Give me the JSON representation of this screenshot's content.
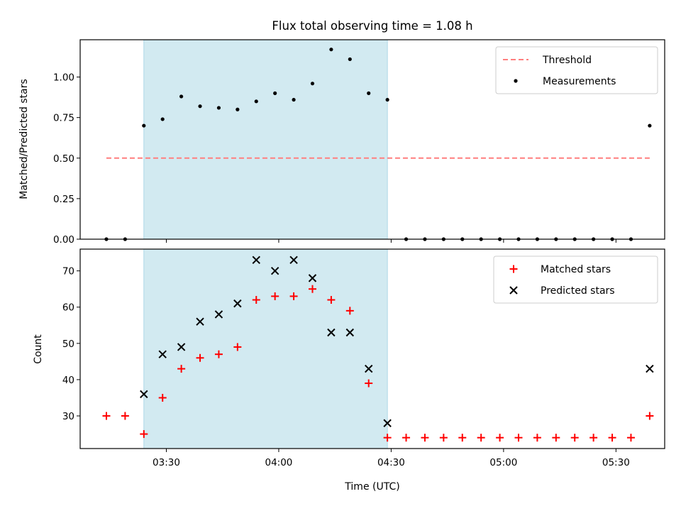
{
  "chart_data": [
    {
      "type": "scatter",
      "title": "Flux total observing time = 1.08 h",
      "ylabel": "Matched/Predicted stars",
      "xlabel": "",
      "ylim": [
        0,
        1.23
      ],
      "yticks": [
        "0.00",
        "0.25",
        "0.50",
        "0.75",
        "1.00"
      ],
      "ytick_values": [
        0,
        0.25,
        0.5,
        0.75,
        1.0
      ],
      "legend": {
        "placement": "top-right",
        "entries": [
          "Threshold",
          "Measurements"
        ]
      },
      "threshold": {
        "name": "Threshold",
        "value": 0.5,
        "x_start": "03:14",
        "x_end": "05:39",
        "color": "#ff7f7f"
      },
      "shaded_span": {
        "start": "03:24",
        "end": "04:29",
        "color": "#add8e6"
      },
      "series": [
        {
          "name": "Measurements",
          "color": "#000000",
          "x": [
            "03:14",
            "03:19",
            "03:24",
            "03:29",
            "03:34",
            "03:39",
            "03:44",
            "03:49",
            "03:54",
            "03:59",
            "04:04",
            "04:09",
            "04:14",
            "04:19",
            "04:24",
            "04:29",
            "04:34",
            "04:39",
            "04:44",
            "04:49",
            "04:54",
            "04:59",
            "05:04",
            "05:09",
            "05:14",
            "05:19",
            "05:24",
            "05:29",
            "05:34",
            "05:39"
          ],
          "values": [
            0,
            0,
            0.7,
            0.74,
            0.88,
            0.82,
            0.81,
            0.8,
            0.85,
            0.9,
            0.86,
            0.96,
            1.17,
            1.11,
            0.9,
            0.86,
            0,
            0,
            0,
            0,
            0,
            0,
            0,
            0,
            0,
            0,
            0,
            0,
            0,
            0.7
          ]
        }
      ]
    },
    {
      "type": "scatter",
      "title": "",
      "ylabel": "Count",
      "xlabel": "Time (UTC)",
      "ylim": [
        21,
        76
      ],
      "yticks": [
        "30",
        "40",
        "50",
        "60",
        "70"
      ],
      "ytick_values": [
        30,
        40,
        50,
        60,
        70
      ],
      "xticks": [
        "03:30",
        "04:00",
        "04:30",
        "05:00",
        "05:30"
      ],
      "xtick_values": [
        "03:30",
        "04:00",
        "04:30",
        "05:00",
        "05:30"
      ],
      "xlim": [
        "03:07",
        "05:43"
      ],
      "legend": {
        "placement": "top-right",
        "entries": [
          "Matched stars",
          "Predicted stars"
        ]
      },
      "shaded_span": {
        "start": "03:24",
        "end": "04:29",
        "color": "#add8e6"
      },
      "series": [
        {
          "name": "Matched stars",
          "marker": "+",
          "color": "#ff0000",
          "x": [
            "03:14",
            "03:19",
            "03:24",
            "03:29",
            "03:34",
            "03:39",
            "03:44",
            "03:49",
            "03:54",
            "03:59",
            "04:04",
            "04:09",
            "04:14",
            "04:19",
            "04:24",
            "04:29",
            "04:34",
            "04:39",
            "04:44",
            "04:49",
            "04:54",
            "04:59",
            "05:04",
            "05:09",
            "05:14",
            "05:19",
            "05:24",
            "05:29",
            "05:34",
            "05:39"
          ],
          "values": [
            30,
            30,
            25,
            35,
            43,
            46,
            47,
            49,
            62,
            63,
            63,
            65,
            62,
            59,
            39,
            24,
            24,
            24,
            24,
            24,
            24,
            24,
            24,
            24,
            24,
            24,
            24,
            24,
            24,
            30
          ]
        },
        {
          "name": "Predicted stars",
          "marker": "x",
          "color": "#000000",
          "x": [
            "03:24",
            "03:29",
            "03:34",
            "03:39",
            "03:44",
            "03:49",
            "03:54",
            "03:59",
            "04:04",
            "04:09",
            "04:14",
            "04:19",
            "04:24",
            "04:29",
            "05:39"
          ],
          "values": [
            36,
            47,
            49,
            56,
            58,
            61,
            73,
            70,
            73,
            68,
            53,
            53,
            43,
            28,
            43
          ]
        }
      ]
    }
  ]
}
